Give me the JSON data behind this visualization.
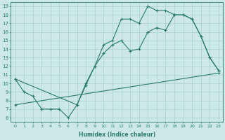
{
  "xlabel": "Humidex (Indice chaleur)",
  "bg_color": "#cde8e8",
  "grid_color": "#aed4d4",
  "line_color": "#2a7a6a",
  "xlim": [
    -0.5,
    23.5
  ],
  "ylim": [
    5.5,
    19.5
  ],
  "xticks": [
    0,
    1,
    2,
    3,
    4,
    5,
    6,
    7,
    8,
    9,
    10,
    11,
    12,
    13,
    14,
    15,
    16,
    17,
    18,
    19,
    20,
    21,
    22,
    23
  ],
  "yticks": [
    6,
    7,
    8,
    9,
    10,
    11,
    12,
    13,
    14,
    15,
    16,
    17,
    18,
    19
  ],
  "line1_x": [
    0,
    1,
    2,
    3,
    4,
    5,
    6,
    7,
    8,
    9,
    10,
    11,
    12,
    13,
    14,
    15,
    16,
    17,
    18,
    19,
    20,
    21,
    22,
    23
  ],
  "line1_y": [
    10.5,
    9.0,
    8.5,
    7.0,
    7.0,
    7.0,
    6.0,
    7.5,
    10.0,
    12.0,
    14.5,
    15.0,
    17.5,
    17.5,
    17.0,
    19.0,
    18.5,
    18.5,
    18.0,
    18.0,
    17.5,
    15.5,
    13.0,
    11.5
  ],
  "line2_x": [
    0,
    7,
    8,
    9,
    10,
    11,
    12,
    13,
    14,
    15,
    16,
    17,
    18,
    19,
    20,
    21,
    22,
    23
  ],
  "line2_y": [
    10.5,
    7.5,
    9.8,
    12.0,
    13.5,
    14.5,
    15.0,
    13.8,
    14.0,
    16.0,
    16.5,
    16.2,
    18.0,
    18.0,
    17.5,
    15.5,
    13.0,
    11.5
  ],
  "line3_x": [
    0,
    23
  ],
  "line3_y": [
    7.5,
    11.2
  ]
}
